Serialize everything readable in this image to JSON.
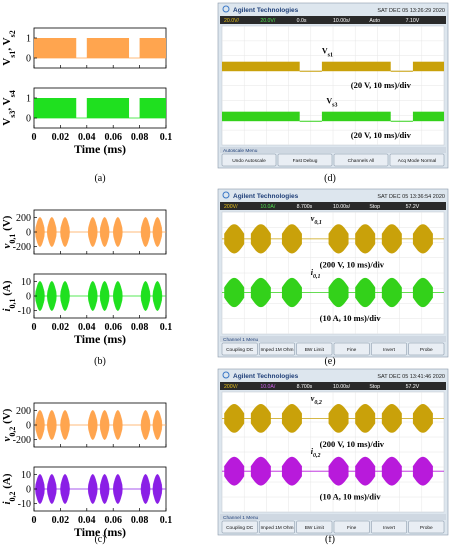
{
  "colors": {
    "orange": "#FFA54F",
    "green": "#1FE01F",
    "purple": "#8A1FE6",
    "scope_yellow": "#C9A10A",
    "scope_green": "#33D11A",
    "scope_magenta": "#B81ADB",
    "scope_bg": "#FFFFFF",
    "scope_frame": "#DDE6EE",
    "scope_header": "#1F3F78",
    "scope_menu": "#3A77C6"
  },
  "panel_labels": [
    "(a)",
    "(b)",
    "(c)",
    "(d)",
    "(e)",
    "(f)"
  ],
  "scope": {
    "brand": "Agilent Technologies",
    "d": {
      "timestamp": "SAT DEC 05 13:26:29 2020",
      "status": [
        "20.0V/",
        "20.0V/",
        "0.0s",
        "10.00s/",
        "Auto",
        "7.10V"
      ],
      "trace1": "V",
      "trace1_sub": "s1",
      "trace2": "V",
      "trace2_sub": "s3",
      "scale1": "(20 V, 10 ms)/div",
      "scale2": "(20 V, 10 ms)/div",
      "menu_title": "Autoscale Menu",
      "buttons": [
        "Undo Autoscale",
        "Fast Debug",
        "Channels All",
        "Acq Mode Normal"
      ]
    },
    "e": {
      "timestamp": "SAT DEC 05 13:36:54 2020",
      "status": [
        "200V/",
        "10.0A/",
        "8.700s",
        "10.00s/",
        "Stop",
        "57.2V"
      ],
      "trace1": "v",
      "trace1_sub": "0,1",
      "trace2": "i",
      "trace2_sub": "0,1",
      "scale1": "(200 V, 10 ms)/div",
      "scale2": "(10 A, 10 ms)/div",
      "menu_title": "Channel 1 Menu",
      "buttons": [
        "Coupling DC",
        "Imped 1M Ohm",
        "BW Limit",
        "Fine",
        "Invert",
        "Probe"
      ]
    },
    "f": {
      "timestamp": "SAT DEC 05 13:41:46 2020",
      "status": [
        "200V/",
        "10.0A/",
        "8.700s",
        "10.00s/",
        "Stop",
        "57.2V"
      ],
      "trace1": "v",
      "trace1_sub": "0,2",
      "trace2": "i",
      "trace2_sub": "0,2",
      "scale1": "(200 V, 10 ms)/div",
      "scale2": "(10 A, 10 ms)/div",
      "menu_title": "Channel 1 Menu",
      "buttons": [
        "Coupling DC",
        "Imped 1M Ohm",
        "BW Limit",
        "Fine",
        "Invert",
        "Probe"
      ]
    }
  },
  "chart_data": [
    {
      "panel": "(a)",
      "type": "line",
      "subplots": [
        {
          "ylabel": "V",
          "ylabel_subs": [
            "s1",
            "s2"
          ],
          "ylabel_text": ", V",
          "ylim": [
            -0.5,
            1.5
          ],
          "yticks": [
            0,
            1
          ],
          "color": "#FFA54F",
          "style": "pwm",
          "on_intervals": [
            [
              0,
              0.032
            ],
            [
              0.04,
              0.072
            ],
            [
              0.08,
              0.1
            ]
          ]
        },
        {
          "ylabel": "V",
          "ylabel_subs": [
            "s3",
            "s4"
          ],
          "ylabel_text": ", V",
          "ylim": [
            -0.5,
            1.5
          ],
          "yticks": [
            0,
            1
          ],
          "color": "#1FE01F",
          "style": "pwm",
          "on_intervals": [
            [
              0,
              0.032
            ],
            [
              0.04,
              0.072
            ],
            [
              0.08,
              0.1
            ]
          ]
        }
      ],
      "xlim": [
        0,
        0.1
      ],
      "xticks": [
        0,
        0.02,
        0.04,
        0.06,
        0.08,
        0.1
      ],
      "xticklabels": [
        "0",
        "0.02",
        "0.04",
        "0.06",
        "0.08",
        "0.1"
      ],
      "xlabel": "Time (ms)"
    },
    {
      "panel": "(b)",
      "type": "line",
      "subplots": [
        {
          "ylabel": "v",
          "ylabel_subs": [
            "0,1"
          ],
          "ylabel_text": " (V)",
          "ylim": [
            -300,
            300
          ],
          "yticks": [
            -200,
            0,
            200
          ],
          "color": "#FFA54F",
          "style": "burst",
          "peak": 200,
          "bursts": [
            [
              0.001,
              0.008
            ],
            [
              0.01,
              0.017
            ],
            [
              0.02,
              0.027
            ],
            [
              0.041,
              0.048
            ],
            [
              0.05,
              0.057
            ],
            [
              0.06,
              0.067
            ],
            [
              0.081,
              0.088
            ],
            [
              0.09,
              0.097
            ]
          ]
        },
        {
          "ylabel": "i",
          "ylabel_subs": [
            "0,1"
          ],
          "ylabel_text": " (A)",
          "ylim": [
            -15,
            15
          ],
          "yticks": [
            -10,
            0,
            10
          ],
          "color": "#1FE01F",
          "style": "burst",
          "peak": 10,
          "bursts": [
            [
              0.001,
              0.008
            ],
            [
              0.01,
              0.017
            ],
            [
              0.02,
              0.027
            ],
            [
              0.041,
              0.048
            ],
            [
              0.05,
              0.057
            ],
            [
              0.06,
              0.067
            ],
            [
              0.081,
              0.088
            ],
            [
              0.09,
              0.097
            ]
          ]
        }
      ],
      "xlim": [
        0,
        0.1
      ],
      "xticks": [
        0,
        0.02,
        0.04,
        0.06,
        0.08,
        0.1
      ],
      "xticklabels": [
        "0",
        "0.02",
        "0.04",
        "0.06",
        "0.08",
        "0.1"
      ],
      "xlabel": "Time (ms)"
    },
    {
      "panel": "(c)",
      "type": "line",
      "subplots": [
        {
          "ylabel": "v",
          "ylabel_subs": [
            "0,2"
          ],
          "ylabel_text": " (V)",
          "ylim": [
            -300,
            300
          ],
          "yticks": [
            -200,
            0,
            200
          ],
          "color": "#FFA54F",
          "style": "burst",
          "peak": 200,
          "bursts": [
            [
              0.001,
              0.008
            ],
            [
              0.01,
              0.017
            ],
            [
              0.02,
              0.027
            ],
            [
              0.041,
              0.048
            ],
            [
              0.05,
              0.057
            ],
            [
              0.06,
              0.067
            ],
            [
              0.081,
              0.088
            ],
            [
              0.09,
              0.097
            ]
          ]
        },
        {
          "ylabel": "i",
          "ylabel_subs": [
            "0,2"
          ],
          "ylabel_text": " (A)",
          "ylim": [
            -15,
            15
          ],
          "yticks": [
            -10,
            0,
            10
          ],
          "color": "#8A1FE6",
          "style": "burst",
          "peak": 10,
          "bursts": [
            [
              0.001,
              0.008
            ],
            [
              0.01,
              0.017
            ],
            [
              0.02,
              0.027
            ],
            [
              0.041,
              0.048
            ],
            [
              0.05,
              0.057
            ],
            [
              0.06,
              0.067
            ],
            [
              0.081,
              0.088
            ],
            [
              0.09,
              0.097
            ]
          ]
        }
      ],
      "xlim": [
        0,
        0.1
      ],
      "xticks": [
        0,
        0.02,
        0.04,
        0.06,
        0.08,
        0.1
      ],
      "xticklabels": [
        "0",
        "0.02",
        "0.04",
        "0.06",
        "0.08",
        "0.1"
      ],
      "xlabel": "Time (ms)"
    }
  ]
}
